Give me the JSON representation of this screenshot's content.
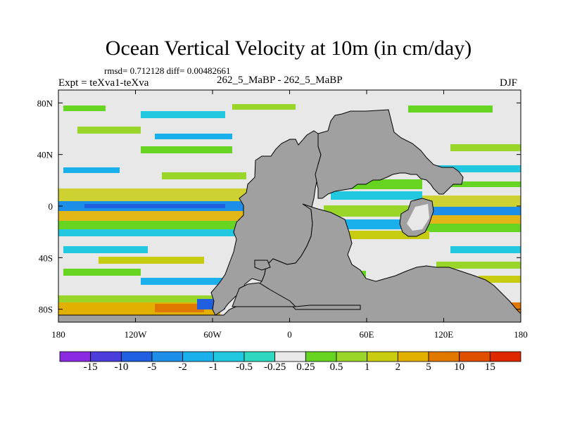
{
  "figure": {
    "title": "Ocean Vertical Velocity at 10m (in cm/day)",
    "stats": "rmsd= 0.712128 diff= 0.00482661",
    "experiment": "Expt = teXva1-teXva",
    "case": "262_5_MaBP - 262_5_MaBP",
    "season": "DJF"
  },
  "axes": {
    "x_ticks": [
      "180",
      "120W",
      "60W",
      "0",
      "60E",
      "120E",
      "180"
    ],
    "x_values": [
      -180,
      -120,
      -60,
      0,
      60,
      120,
      180
    ],
    "y_ticks": [
      "80N",
      "40N",
      "0",
      "40S",
      "80S"
    ],
    "y_values": [
      80,
      40,
      0,
      -40,
      -80
    ],
    "lon_range": [
      -180,
      180
    ],
    "lat_range": [
      -90,
      90
    ]
  },
  "colorbar": {
    "labels": [
      "-15",
      "-10",
      "-5",
      "-2",
      "-1",
      "-0.5",
      "-0.25",
      "0.25",
      "0.5",
      "1",
      "2",
      "5",
      "10",
      "15"
    ],
    "colors": [
      "#8a2be2",
      "#4b3ddc",
      "#1f5fe0",
      "#1e8fe8",
      "#1ab0ec",
      "#22c8e0",
      "#30d8c0",
      "#e8e8e8",
      "#66d420",
      "#9ad62a",
      "#c8cc10",
      "#e2b000",
      "#e07800",
      "#e04e00",
      "#e02800"
    ]
  },
  "chart_data": {
    "type": "heatmap",
    "title": "Ocean Vertical Velocity at 10m (in cm/day)",
    "xlabel": "",
    "ylabel": "",
    "xlim": [
      -180,
      180
    ],
    "ylim": [
      -90,
      90
    ],
    "levels": [
      -15,
      -10,
      -5,
      -2,
      -1,
      -0.5,
      -0.25,
      0.25,
      0.5,
      1,
      2,
      5,
      10,
      15
    ],
    "annotations": [
      "rmsd= 0.712128 diff= 0.00482661",
      "Expt = teXva1-teXva",
      "262_5_MaBP - 262_5_MaBP",
      "DJF"
    ]
  },
  "colors": {
    "land": "#a0a0a0",
    "neutral": "#e8e8e8"
  }
}
